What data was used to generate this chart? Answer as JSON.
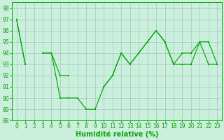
{
  "title": "",
  "xlabel": "Humidité relative (%)",
  "ylabel": "",
  "background_color": "#cceedd",
  "grid_color": "#99ccbb",
  "line_color": "#00aa00",
  "x_data": [
    0,
    1,
    2,
    3,
    4,
    5,
    6,
    7,
    8,
    9,
    10,
    11,
    12,
    13,
    14,
    15,
    16,
    17,
    18,
    19,
    20,
    21,
    22,
    23
  ],
  "line1": [
    97,
    93,
    null,
    94,
    94,
    92,
    92,
    null,
    null,
    null,
    91,
    92,
    94,
    93,
    94,
    95,
    96,
    95,
    93,
    94,
    94,
    95,
    93,
    93
  ],
  "line2": [
    97,
    93,
    null,
    94,
    94,
    90,
    90,
    90,
    89,
    89,
    91,
    92,
    94,
    93,
    94,
    95,
    96,
    95,
    93,
    93,
    93,
    95,
    95,
    93
  ],
  "line3": [
    null,
    null,
    null,
    null,
    null,
    null,
    null,
    null,
    null,
    null,
    null,
    null,
    null,
    null,
    null,
    null,
    null,
    null,
    93,
    93,
    94,
    93,
    null,
    null
  ],
  "ylim": [
    88,
    98.5
  ],
  "xlim": [
    -0.5,
    23.5
  ],
  "yticks": [
    88,
    89,
    90,
    91,
    92,
    93,
    94,
    95,
    96,
    97,
    98
  ],
  "xticks": [
    0,
    1,
    2,
    3,
    4,
    5,
    6,
    7,
    8,
    9,
    10,
    11,
    12,
    13,
    14,
    15,
    16,
    17,
    18,
    19,
    20,
    21,
    22,
    23
  ],
  "xlabel_fontsize": 7,
  "tick_fontsize": 5.5
}
